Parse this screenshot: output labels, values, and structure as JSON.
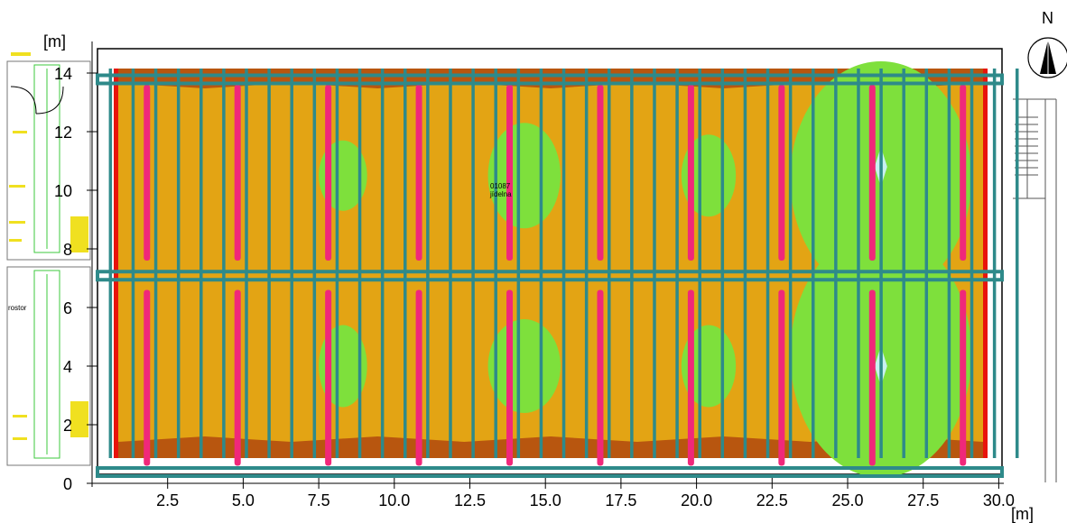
{
  "units": {
    "y_label": "[m]",
    "x_label": "[m]"
  },
  "north": {
    "label": "N",
    "icon": "north-arrow-icon"
  },
  "room": {
    "code": "01087",
    "name": "jídelna"
  },
  "left_room_label": "rostor",
  "colors": {
    "level_dark": "#b8560f",
    "level_mid": "#e3a414",
    "level_green": "#7ee03c",
    "level_light": "#c8f0f0",
    "luminaire": "#f0287a",
    "grid_beam": "#2e8a8a",
    "wall_red": "#e8140c"
  },
  "chart_data": {
    "type": "heatmap",
    "x_ticks": [
      "2.5",
      "5.0",
      "7.5",
      "10.0",
      "12.5",
      "15.0",
      "17.5",
      "20.0",
      "22.5",
      "25.0",
      "27.5",
      "30.0"
    ],
    "y_ticks": [
      "0",
      "2",
      "4",
      "6",
      "8",
      "10",
      "12",
      "14"
    ],
    "xlim": [
      0,
      31.5
    ],
    "ylim": [
      0,
      14.5
    ],
    "luminaire_columns_x": [
      1.8,
      4.8,
      7.8,
      10.8,
      13.8,
      16.8,
      19.8,
      22.8,
      25.8,
      28.8
    ],
    "luminaire_rows_y": [
      [
        0.6,
        6.6
      ],
      [
        7.6,
        13.6
      ]
    ],
    "green_zones": [
      {
        "x": 8.3,
        "y": 4,
        "rx": 0.8,
        "ry": 1.4
      },
      {
        "x": 8.3,
        "y": 10.5,
        "rx": 0.8,
        "ry": 1.2
      },
      {
        "x": 14.3,
        "y": 4,
        "rx": 1.2,
        "ry": 1.6
      },
      {
        "x": 14.3,
        "y": 10.5,
        "rx": 1.2,
        "ry": 1.8
      },
      {
        "x": 20.4,
        "y": 4,
        "rx": 0.9,
        "ry": 1.4
      },
      {
        "x": 20.4,
        "y": 10.5,
        "rx": 0.9,
        "ry": 1.4
      },
      {
        "x": 26.1,
        "y": 4.4,
        "rx": 3.0,
        "ry": 4.2
      },
      {
        "x": 26.1,
        "y": 10.4,
        "rx": 3.0,
        "ry": 4.0
      }
    ],
    "light_spots": [
      {
        "x": 26.1,
        "y": 4
      },
      {
        "x": 26.1,
        "y": 10.8
      }
    ]
  }
}
